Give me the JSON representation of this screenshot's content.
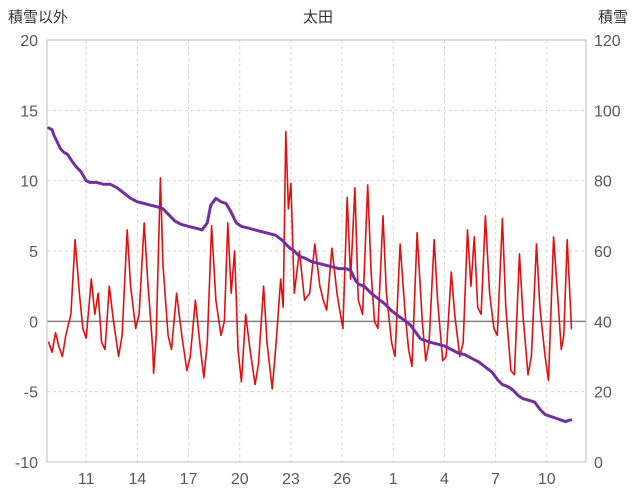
{
  "header": {
    "left_axis_title": "積雪以外",
    "chart_title": "太田",
    "right_axis_title": "積雪"
  },
  "chart_data": {
    "type": "line",
    "title": "太田",
    "legend": "none",
    "grid": {
      "on": true,
      "color": "#d6d6d6",
      "dash": "3,3"
    },
    "plot_border_color": "#bfbfbf",
    "zero_line_color": "#808080",
    "left_axis": {
      "label": "積雪以外",
      "min": -10,
      "max": 20,
      "ticks": [
        20,
        15,
        10,
        5,
        0,
        -5,
        -10
      ]
    },
    "right_axis": {
      "label": "積雪",
      "min": 0,
      "max": 120,
      "ticks": [
        120,
        100,
        80,
        60,
        40,
        20,
        0
      ]
    },
    "x_axis": {
      "min": 8.7,
      "max": 40.3,
      "tick_labels": [
        "11",
        "14",
        "17",
        "20",
        "23",
        "26",
        "1",
        "4",
        "7",
        "10"
      ],
      "tick_positions": [
        11,
        14,
        17,
        20,
        23,
        26,
        29,
        32,
        35,
        38
      ]
    },
    "series": [
      {
        "name": "積雪以外",
        "axis": "left",
        "color": "#e01010",
        "width": 1.6,
        "points": [
          [
            8.8,
            -1.5
          ],
          [
            9.0,
            -2.2
          ],
          [
            9.2,
            -0.8
          ],
          [
            9.4,
            -1.8
          ],
          [
            9.6,
            -2.5
          ],
          [
            9.8,
            -1.0
          ],
          [
            10.1,
            0.5
          ],
          [
            10.35,
            5.8
          ],
          [
            10.6,
            2.0
          ],
          [
            10.8,
            -0.5
          ],
          [
            11.0,
            -1.2
          ],
          [
            11.3,
            3.0
          ],
          [
            11.5,
            0.5
          ],
          [
            11.7,
            2.0
          ],
          [
            11.9,
            -1.5
          ],
          [
            12.1,
            -2.0
          ],
          [
            12.35,
            2.5
          ],
          [
            12.6,
            0.0
          ],
          [
            12.9,
            -2.5
          ],
          [
            13.1,
            -1.0
          ],
          [
            13.4,
            6.5
          ],
          [
            13.6,
            2.5
          ],
          [
            13.9,
            -0.5
          ],
          [
            14.1,
            0.5
          ],
          [
            14.4,
            7.0
          ],
          [
            14.6,
            3.0
          ],
          [
            14.9,
            -2.0
          ],
          [
            14.95,
            -3.7
          ],
          [
            15.1,
            -1.0
          ],
          [
            15.35,
            10.2
          ],
          [
            15.5,
            4.0
          ],
          [
            15.8,
            -1.0
          ],
          [
            16.0,
            -2.0
          ],
          [
            16.3,
            2.0
          ],
          [
            16.6,
            -1.0
          ],
          [
            16.9,
            -3.5
          ],
          [
            17.1,
            -2.5
          ],
          [
            17.4,
            1.5
          ],
          [
            17.7,
            -2.0
          ],
          [
            17.9,
            -4.0
          ],
          [
            18.1,
            -1.5
          ],
          [
            18.35,
            6.8
          ],
          [
            18.6,
            1.5
          ],
          [
            18.9,
            -1.0
          ],
          [
            19.1,
            0.0
          ],
          [
            19.3,
            7.0
          ],
          [
            19.5,
            2.0
          ],
          [
            19.7,
            5.0
          ],
          [
            19.9,
            -2.0
          ],
          [
            20.1,
            -4.3
          ],
          [
            20.35,
            0.5
          ],
          [
            20.6,
            -2.0
          ],
          [
            20.9,
            -4.5
          ],
          [
            21.1,
            -3.0
          ],
          [
            21.4,
            2.5
          ],
          [
            21.6,
            -1.5
          ],
          [
            21.9,
            -4.8
          ],
          [
            22.1,
            -2.0
          ],
          [
            22.4,
            3.0
          ],
          [
            22.55,
            1.0
          ],
          [
            22.7,
            13.5
          ],
          [
            22.85,
            8.0
          ],
          [
            23.0,
            9.8
          ],
          [
            23.2,
            2.0
          ],
          [
            23.5,
            5.0
          ],
          [
            23.8,
            1.5
          ],
          [
            24.1,
            2.0
          ],
          [
            24.4,
            5.5
          ],
          [
            24.7,
            2.5
          ],
          [
            24.9,
            1.5
          ],
          [
            25.1,
            0.8
          ],
          [
            25.4,
            5.2
          ],
          [
            25.7,
            2.0
          ],
          [
            25.9,
            0.5
          ],
          [
            26.05,
            -0.5
          ],
          [
            26.3,
            8.8
          ],
          [
            26.5,
            3.0
          ],
          [
            26.75,
            9.5
          ],
          [
            26.95,
            1.5
          ],
          [
            27.2,
            0.5
          ],
          [
            27.5,
            9.7
          ],
          [
            27.7,
            3.5
          ],
          [
            27.9,
            0.0
          ],
          [
            28.1,
            -0.5
          ],
          [
            28.4,
            7.5
          ],
          [
            28.6,
            2.0
          ],
          [
            28.9,
            -1.5
          ],
          [
            29.1,
            -2.5
          ],
          [
            29.4,
            5.5
          ],
          [
            29.7,
            0.5
          ],
          [
            29.9,
            -2.0
          ],
          [
            30.1,
            -3.2
          ],
          [
            30.4,
            6.3
          ],
          [
            30.7,
            0.0
          ],
          [
            30.9,
            -2.8
          ],
          [
            31.1,
            -1.5
          ],
          [
            31.4,
            5.8
          ],
          [
            31.6,
            1.5
          ],
          [
            31.9,
            -2.8
          ],
          [
            32.1,
            -2.5
          ],
          [
            32.4,
            3.5
          ],
          [
            32.6,
            0.5
          ],
          [
            32.9,
            -2.5
          ],
          [
            33.1,
            -1.5
          ],
          [
            33.35,
            6.5
          ],
          [
            33.55,
            2.5
          ],
          [
            33.75,
            6.0
          ],
          [
            33.95,
            1.0
          ],
          [
            34.15,
            0.5
          ],
          [
            34.4,
            7.5
          ],
          [
            34.65,
            2.0
          ],
          [
            34.9,
            -0.5
          ],
          [
            35.1,
            -1.0
          ],
          [
            35.4,
            7.3
          ],
          [
            35.6,
            1.0
          ],
          [
            35.9,
            -3.5
          ],
          [
            36.1,
            -3.8
          ],
          [
            36.4,
            4.8
          ],
          [
            36.6,
            0.5
          ],
          [
            36.9,
            -3.8
          ],
          [
            37.1,
            -2.5
          ],
          [
            37.4,
            5.5
          ],
          [
            37.6,
            1.0
          ],
          [
            37.9,
            -2.5
          ],
          [
            38.1,
            -4.2
          ],
          [
            38.4,
            6.0
          ],
          [
            38.6,
            2.5
          ],
          [
            38.85,
            -2.0
          ],
          [
            39.0,
            -1.0
          ],
          [
            39.2,
            5.8
          ],
          [
            39.45,
            -0.5
          ]
        ]
      },
      {
        "name": "積雪",
        "axis": "right",
        "color": "#7030a0",
        "width": 3,
        "points": [
          [
            8.8,
            95
          ],
          [
            9.0,
            94.5
          ],
          [
            9.1,
            93
          ],
          [
            9.3,
            91
          ],
          [
            9.5,
            89
          ],
          [
            9.7,
            88
          ],
          [
            9.9,
            87.5
          ],
          [
            10.1,
            86
          ],
          [
            10.4,
            84
          ],
          [
            10.7,
            82.5
          ],
          [
            11.0,
            80
          ],
          [
            11.2,
            79.5
          ],
          [
            11.6,
            79.5
          ],
          [
            12.0,
            79
          ],
          [
            12.4,
            79
          ],
          [
            12.8,
            78
          ],
          [
            13.2,
            76.5
          ],
          [
            13.6,
            75
          ],
          [
            14.0,
            74
          ],
          [
            14.4,
            73.5
          ],
          [
            14.8,
            73
          ],
          [
            15.2,
            72.5
          ],
          [
            15.5,
            72
          ],
          [
            15.9,
            70
          ],
          [
            16.2,
            68.5
          ],
          [
            16.6,
            67.5
          ],
          [
            17.0,
            67
          ],
          [
            17.4,
            66.5
          ],
          [
            17.8,
            66
          ],
          [
            18.1,
            68
          ],
          [
            18.3,
            73
          ],
          [
            18.6,
            75
          ],
          [
            18.9,
            74
          ],
          [
            19.2,
            73.5
          ],
          [
            19.5,
            71
          ],
          [
            19.8,
            68
          ],
          [
            20.1,
            67
          ],
          [
            20.5,
            66.5
          ],
          [
            20.9,
            66
          ],
          [
            21.3,
            65.5
          ],
          [
            21.7,
            65
          ],
          [
            22.1,
            64.5
          ],
          [
            22.5,
            63
          ],
          [
            22.9,
            61
          ],
          [
            23.2,
            60
          ],
          [
            23.5,
            58.5
          ],
          [
            23.8,
            58
          ],
          [
            24.2,
            57
          ],
          [
            24.6,
            56.5
          ],
          [
            25.0,
            56
          ],
          [
            25.4,
            55.5
          ],
          [
            25.8,
            55
          ],
          [
            26.2,
            55
          ],
          [
            26.5,
            54.5
          ],
          [
            26.8,
            51.5
          ],
          [
            27.0,
            50.5
          ],
          [
            27.3,
            50
          ],
          [
            27.7,
            48
          ],
          [
            28.1,
            46.5
          ],
          [
            28.5,
            45
          ],
          [
            28.9,
            43
          ],
          [
            29.3,
            41.5
          ],
          [
            29.6,
            40.5
          ],
          [
            30.0,
            39
          ],
          [
            30.3,
            37
          ],
          [
            30.6,
            35
          ],
          [
            30.9,
            34.5
          ],
          [
            31.2,
            34
          ],
          [
            31.6,
            33.5
          ],
          [
            32.0,
            33
          ],
          [
            32.4,
            32
          ],
          [
            32.8,
            31
          ],
          [
            33.2,
            30.5
          ],
          [
            33.6,
            29.5
          ],
          [
            34.0,
            28.5
          ],
          [
            34.4,
            27
          ],
          [
            34.8,
            25.5
          ],
          [
            35.1,
            23.5
          ],
          [
            35.4,
            22
          ],
          [
            35.7,
            21.5
          ],
          [
            36.0,
            20.5
          ],
          [
            36.3,
            19
          ],
          [
            36.6,
            18
          ],
          [
            37.0,
            17.5
          ],
          [
            37.3,
            17
          ],
          [
            37.6,
            15
          ],
          [
            37.9,
            13.5
          ],
          [
            38.2,
            13
          ],
          [
            38.5,
            12.5
          ],
          [
            38.8,
            12
          ],
          [
            39.1,
            11.5
          ],
          [
            39.4,
            12
          ]
        ]
      }
    ]
  }
}
